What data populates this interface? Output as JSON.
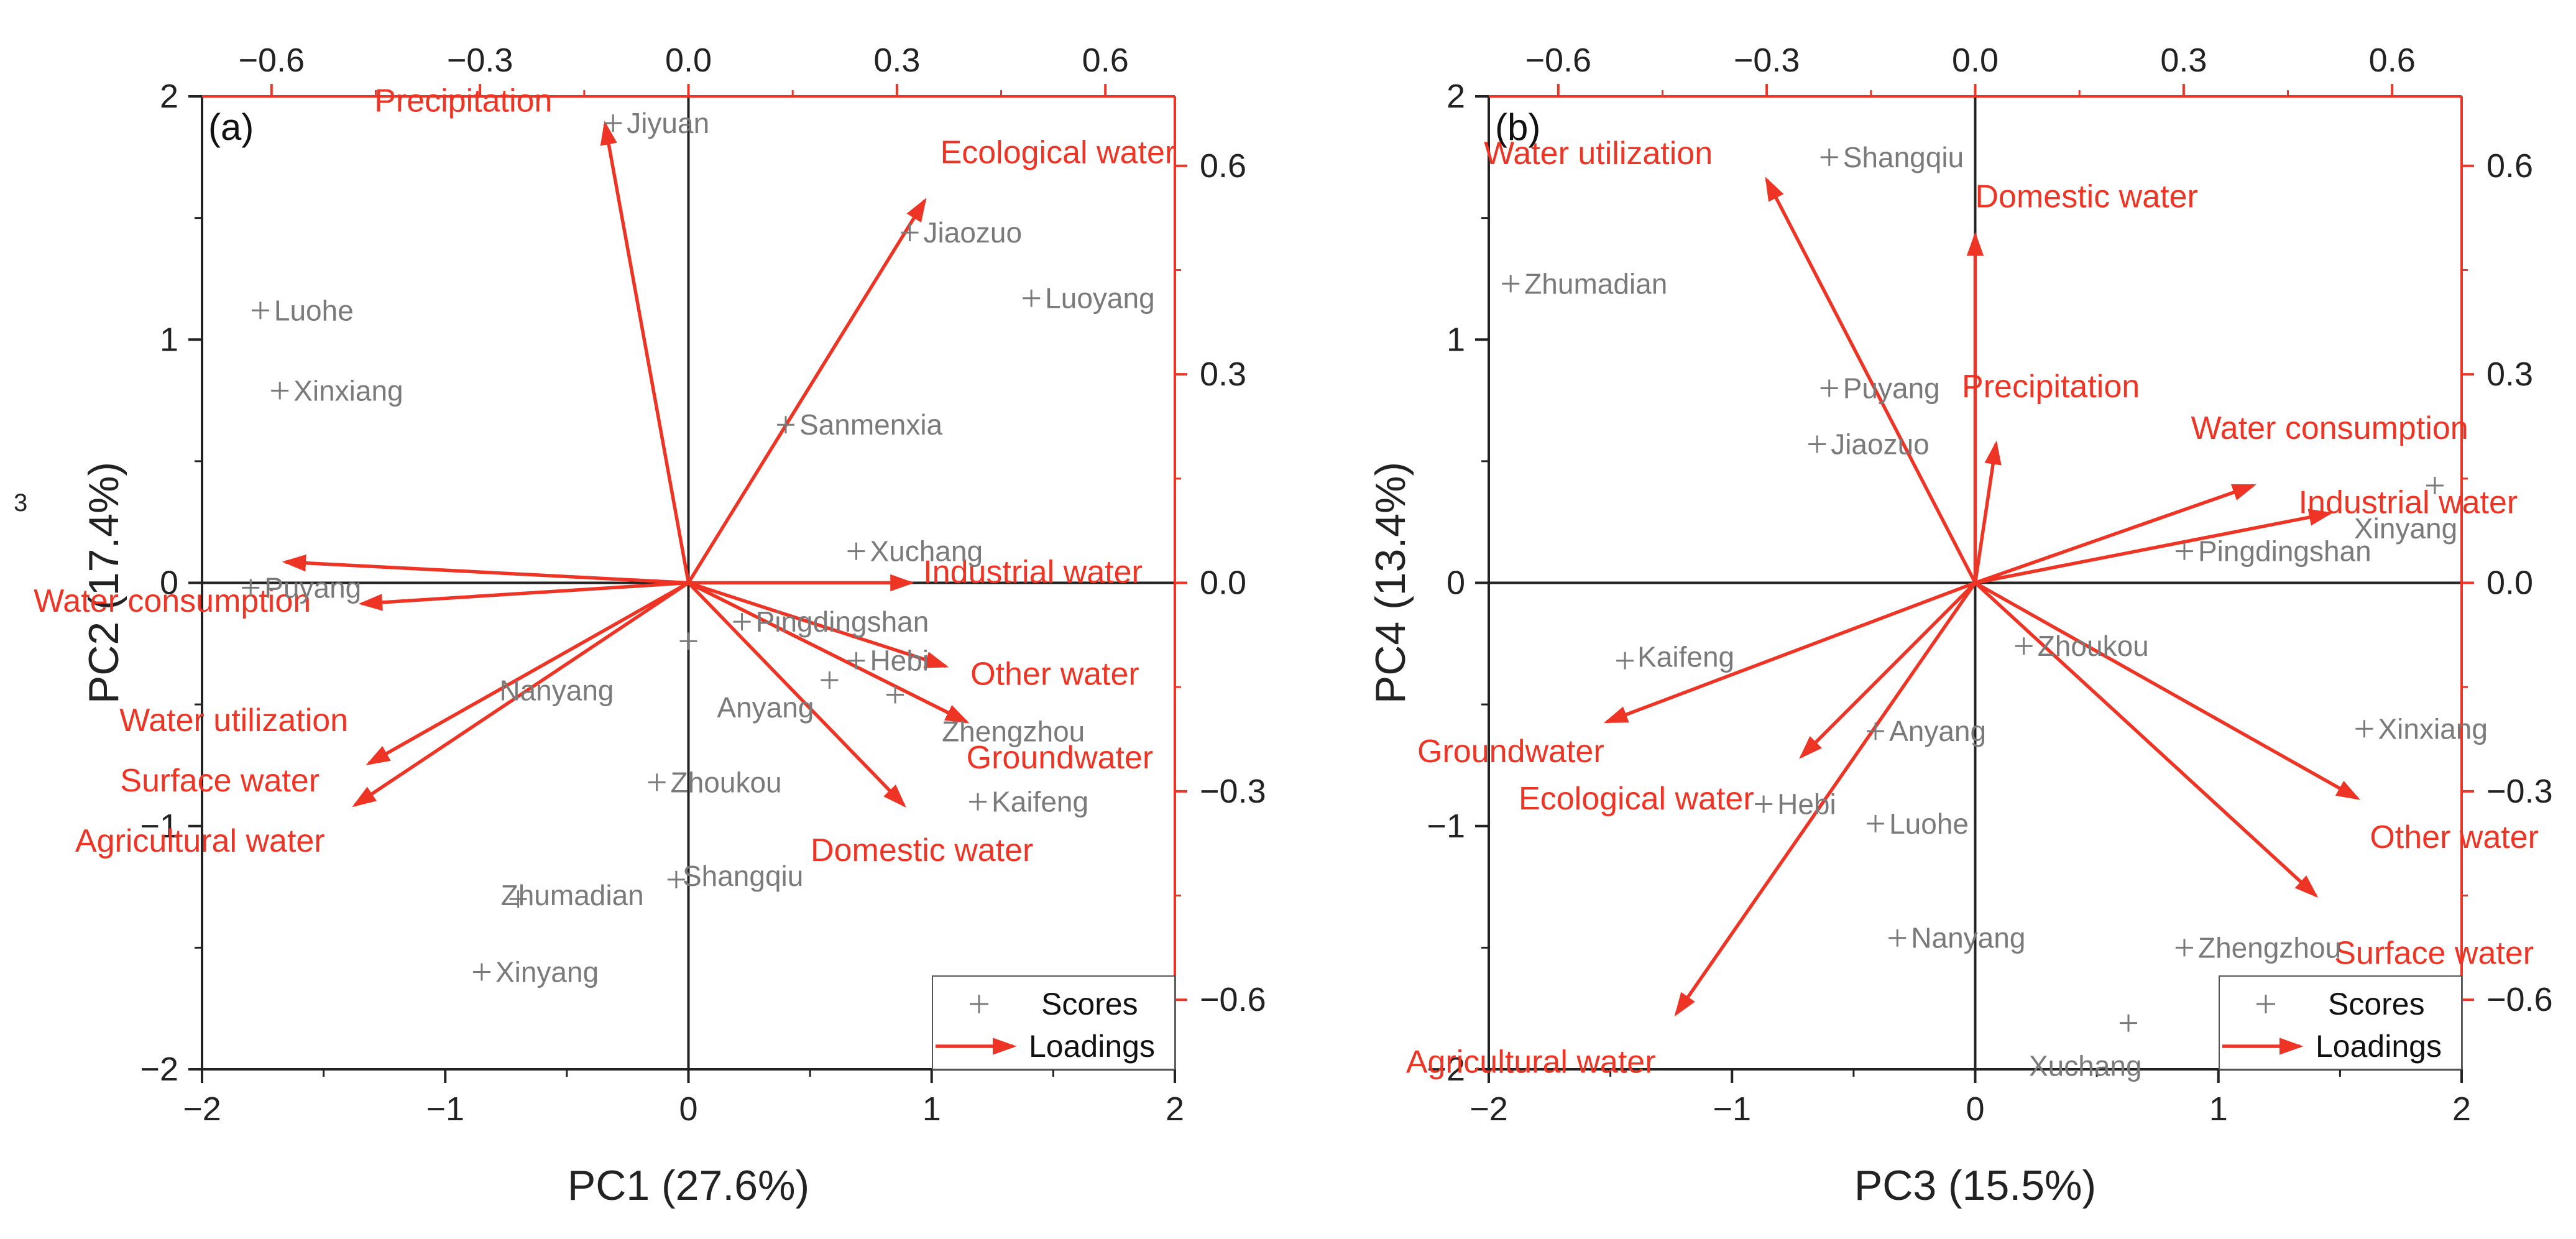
{
  "figure": {
    "stray_mark": "3",
    "colors": {
      "scores": "#7a7a7a",
      "loadings": "#ee3424",
      "axes": "#222222"
    }
  },
  "chart_data": [
    {
      "type": "scatter",
      "panel_label": "(a)",
      "xlabel": "PC1 (27.6%)",
      "ylabel": "PC2 (17.4%)",
      "xlim": [
        -2,
        2
      ],
      "ylim": [
        -2,
        2
      ],
      "x_ticks": [
        "−2",
        "−1",
        "0",
        "1",
        "2"
      ],
      "y_ticks": [
        "−2",
        "−1",
        "0",
        "1",
        "2"
      ],
      "loading_lim": [
        -0.7,
        0.7
      ],
      "top_ticks": [
        {
          "value": -0.6,
          "label": "−0.6"
        },
        {
          "value": -0.3,
          "label": "−0.3"
        },
        {
          "value": 0.0,
          "label": "0.0"
        },
        {
          "value": 0.3,
          "label": "0.3"
        },
        {
          "value": 0.6,
          "label": "0.6"
        }
      ],
      "right_ticks": [
        {
          "value": 0.6,
          "label": "0.6"
        },
        {
          "value": 0.3,
          "label": "0.3"
        },
        {
          "value": 0.0,
          "label": "0.0"
        },
        {
          "value": -0.3,
          "label": "−0.3"
        },
        {
          "value": -0.6,
          "label": "−0.6"
        }
      ],
      "legend": {
        "scores": "Scores",
        "loadings": "Loadings",
        "position": "bottom-right"
      },
      "scores": [
        {
          "name": "Jiyuan",
          "x": -0.31,
          "y": 1.89
        },
        {
          "name": "Jiaozuo",
          "x": 0.91,
          "y": 1.44
        },
        {
          "name": "Luoyang",
          "x": 1.41,
          "y": 1.17
        },
        {
          "name": "Luohe",
          "x": -1.76,
          "y": 1.12
        },
        {
          "name": "Xinxiang",
          "x": -1.68,
          "y": 0.79
        },
        {
          "name": "Sanmenxia",
          "x": 0.4,
          "y": 0.65
        },
        {
          "name": "Xuchang",
          "x": 0.69,
          "y": 0.13
        },
        {
          "name": "Puyang",
          "x": -1.8,
          "y": -0.02
        },
        {
          "name": "Pingdingshan",
          "x": 0.22,
          "y": -0.16
        },
        {
          "name": "Nanyang",
          "x": 0.0,
          "y": -0.24
        },
        {
          "name": "Hebi",
          "x": 0.69,
          "y": -0.32
        },
        {
          "name": "Anyang",
          "x": 0.58,
          "y": -0.4
        },
        {
          "name": "Zhengzhou",
          "x": 0.85,
          "y": -0.46
        },
        {
          "name": "Zhoukou",
          "x": -0.13,
          "y": -0.82
        },
        {
          "name": "Kaifeng",
          "x": 1.19,
          "y": -0.9
        },
        {
          "name": "Shangqiu",
          "x": -0.05,
          "y": -1.22
        },
        {
          "name": "Zhumadian",
          "x": -0.7,
          "y": -1.3
        },
        {
          "name": "Xinyang",
          "x": -0.85,
          "y": -1.6
        }
      ],
      "loadings": [
        {
          "name": "Precipitation",
          "x": -0.12,
          "y": 0.66
        },
        {
          "name": "Ecological water",
          "x": 0.34,
          "y": 0.55
        },
        {
          "name": "Water consumption",
          "x": -0.58,
          "y": 0.03
        },
        {
          "name": "Water utilization",
          "x": -0.47,
          "y": -0.03
        },
        {
          "name": "Industrial water",
          "x": 0.32,
          "y": 0.0
        },
        {
          "name": "Other water",
          "x": 0.37,
          "y": -0.12
        },
        {
          "name": "Groundwater",
          "x": 0.4,
          "y": -0.2
        },
        {
          "name": "Domestic water",
          "x": 0.31,
          "y": -0.32
        },
        {
          "name": "Surface water",
          "x": -0.46,
          "y": -0.26
        },
        {
          "name": "Agricultural water",
          "x": -0.48,
          "y": -0.32
        }
      ]
    },
    {
      "type": "scatter",
      "panel_label": "(b)",
      "xlabel": "PC3 (15.5%)",
      "ylabel": "PC4 (13.4%)",
      "xlim": [
        -2,
        2
      ],
      "ylim": [
        -2,
        2
      ],
      "x_ticks": [
        "−2",
        "−1",
        "0",
        "1",
        "2"
      ],
      "y_ticks": [
        "−2",
        "−1",
        "0",
        "1",
        "2"
      ],
      "loading_lim": [
        -0.7,
        0.7
      ],
      "top_ticks": [
        {
          "value": -0.6,
          "label": "−0.6"
        },
        {
          "value": -0.3,
          "label": "−0.3"
        },
        {
          "value": 0.0,
          "label": "0.0"
        },
        {
          "value": 0.3,
          "label": "0.3"
        },
        {
          "value": 0.6,
          "label": "0.6"
        }
      ],
      "right_ticks": [
        {
          "value": 0.6,
          "label": "0.6"
        },
        {
          "value": 0.3,
          "label": "0.3"
        },
        {
          "value": 0.0,
          "label": "0.0"
        },
        {
          "value": -0.3,
          "label": "−0.3"
        },
        {
          "value": -0.6,
          "label": "−0.6"
        }
      ],
      "legend": {
        "scores": "Scores",
        "loadings": "Loadings",
        "position": "bottom-right"
      },
      "scores": [
        {
          "name": "Shangqiu",
          "x": -0.6,
          "y": 1.75
        },
        {
          "name": "Zhumadian",
          "x": -1.91,
          "y": 1.23
        },
        {
          "name": "Puyang",
          "x": -0.6,
          "y": 0.8
        },
        {
          "name": "Jiaozuo",
          "x": -0.65,
          "y": 0.57
        },
        {
          "name": "Xinyang",
          "x": 1.89,
          "y": 0.4
        },
        {
          "name": "Pingdingshan",
          "x": 0.86,
          "y": 0.13
        },
        {
          "name": "Zhoukou",
          "x": 0.2,
          "y": -0.26
        },
        {
          "name": "Kaifeng",
          "x": -1.44,
          "y": -0.32
        },
        {
          "name": "Anyang",
          "x": -0.41,
          "y": -0.61
        },
        {
          "name": "Xinxiang",
          "x": 1.6,
          "y": -0.6
        },
        {
          "name": "Hebi",
          "x": -0.87,
          "y": -0.91
        },
        {
          "name": "Luohe",
          "x": -0.41,
          "y": -0.99
        },
        {
          "name": "Nanyang",
          "x": -0.32,
          "y": -1.46
        },
        {
          "name": "Zhengzhou",
          "x": 0.86,
          "y": -1.5
        },
        {
          "name": "Xuchang",
          "x": 0.63,
          "y": -1.81
        }
      ],
      "loadings": [
        {
          "name": "Water utilization",
          "x": -0.3,
          "y": 0.58
        },
        {
          "name": "Domestic water",
          "x": 0.0,
          "y": 0.5
        },
        {
          "name": "Precipitation",
          "x": 0.03,
          "y": 0.2
        },
        {
          "name": "Water consumption",
          "x": 0.4,
          "y": 0.14
        },
        {
          "name": "Industrial water",
          "x": 0.51,
          "y": 0.1
        },
        {
          "name": "Groundwater",
          "x": -0.53,
          "y": -0.2
        },
        {
          "name": "Ecological water",
          "x": -0.25,
          "y": -0.25
        },
        {
          "name": "Other water",
          "x": 0.55,
          "y": -0.31
        },
        {
          "name": "Surface water",
          "x": 0.49,
          "y": -0.45
        },
        {
          "name": "Agricultural water",
          "x": -0.43,
          "y": -0.62
        }
      ]
    }
  ]
}
